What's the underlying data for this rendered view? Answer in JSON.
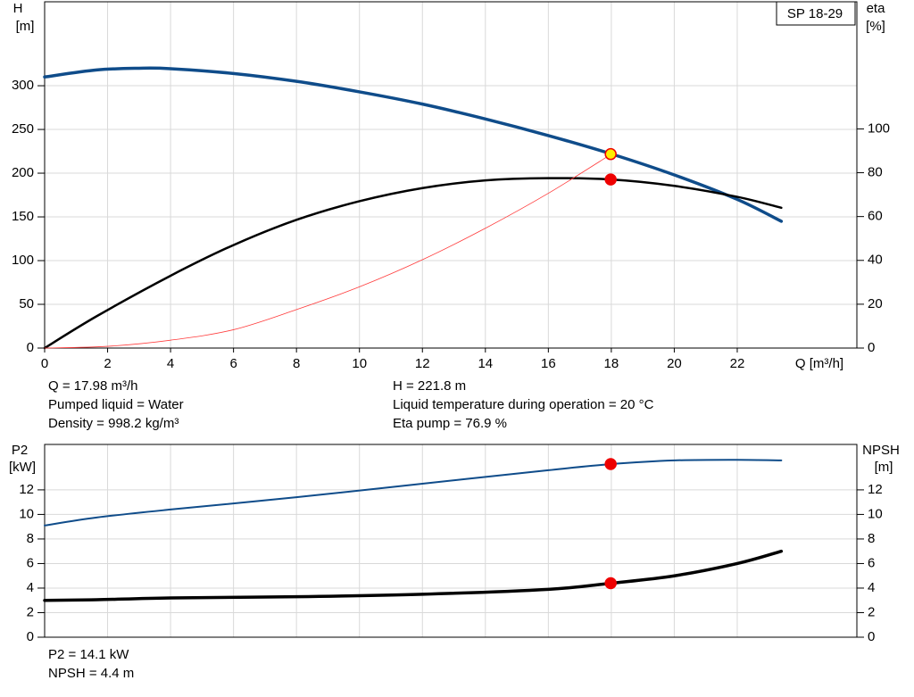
{
  "chart_data": [
    {
      "type": "line",
      "model": "SP 18-29",
      "y_label": "H",
      "y_unit": "[m]",
      "y2_label": "eta",
      "y2_unit": "[%]",
      "x_label": "Q [m³/h]",
      "xlim": [
        0,
        25.8
      ],
      "xticks": [
        0,
        2,
        4,
        6,
        8,
        10,
        12,
        14,
        16,
        18,
        20,
        22
      ],
      "ylim": [
        0,
        396
      ],
      "yticks": [
        0,
        50,
        100,
        150,
        200,
        250,
        300
      ],
      "y2lim": [
        0,
        158
      ],
      "y2ticks": [
        0,
        20,
        40,
        60,
        80,
        100
      ],
      "grid": true,
      "series": [
        {
          "color": "#0f4c8a",
          "width": 3.5,
          "axis": "y",
          "x": [
            0,
            1.65,
            3,
            4,
            6,
            8,
            10,
            12,
            14,
            16,
            18,
            20,
            22,
            23.4
          ],
          "values": [
            310,
            318,
            320,
            319.5,
            314,
            305,
            293,
            279,
            262,
            243,
            222,
            198,
            170,
            145
          ]
        },
        {
          "color": "#000000",
          "width": 2.5,
          "axis": "y2",
          "x": [
            0,
            1.65,
            4,
            6,
            8,
            10,
            12,
            14,
            16,
            18,
            20,
            22,
            23.4
          ],
          "values": [
            0,
            14.5,
            33,
            47,
            58.5,
            67,
            73,
            76.5,
            77.5,
            76.9,
            74,
            69,
            64
          ]
        },
        {
          "color": "#ff3b3b",
          "width": 0.8,
          "axis": "y",
          "x": [
            0,
            2,
            4,
            6,
            8,
            10,
            12,
            14,
            16,
            18
          ],
          "values": [
            0,
            2,
            9,
            21,
            44,
            70,
            101,
            137,
            177,
            221.8
          ]
        }
      ],
      "markers": [
        {
          "x": 17.98,
          "y": 221.8,
          "axis": "y",
          "color": "#ffee00"
        },
        {
          "x": 17.98,
          "y": 76.9,
          "axis": "y2",
          "color": "#ee0000"
        }
      ],
      "notes": [
        "Q = 17.98 m³/h",
        "Pumped liquid = Water",
        "Density = 998.2 kg/m³",
        "H = 221.8 m",
        "Liquid temperature during operation = 20 °C",
        "Eta pump = 76.9 %"
      ]
    },
    {
      "type": "line",
      "y_label": "P2",
      "y_unit": "[kW]",
      "y2_label": "NPSH",
      "y2_unit": "[m]",
      "ylim": [
        0,
        15.7
      ],
      "yticks": [
        0,
        2,
        4,
        6,
        8,
        10,
        12
      ],
      "y2lim": [
        0,
        15.7
      ],
      "y2ticks": [
        0,
        2,
        4,
        6,
        8,
        10,
        12
      ],
      "grid": true,
      "series": [
        {
          "color": "#0f4c8a",
          "width": 2,
          "axis": "y",
          "x": [
            0,
            1.65,
            4,
            8,
            12,
            16,
            18,
            20,
            22,
            23.4
          ],
          "values": [
            9.1,
            9.75,
            10.4,
            11.4,
            12.5,
            13.6,
            14.1,
            14.4,
            14.45,
            14.4
          ]
        },
        {
          "color": "#000000",
          "width": 3.5,
          "axis": "y2",
          "x": [
            0,
            1.65,
            4,
            8,
            12,
            16,
            18,
            20,
            22,
            23.4
          ],
          "values": [
            3.0,
            3.05,
            3.2,
            3.3,
            3.5,
            3.9,
            4.4,
            5.0,
            6.0,
            7.0
          ]
        }
      ],
      "markers": [
        {
          "x": 17.98,
          "y": 14.1,
          "axis": "y",
          "color": "#ee0000"
        },
        {
          "x": 17.98,
          "y": 4.4,
          "axis": "y2",
          "color": "#ee0000"
        }
      ],
      "notes": [
        "P2 = 14.1 kW",
        "NPSH = 4.4 m"
      ]
    }
  ]
}
